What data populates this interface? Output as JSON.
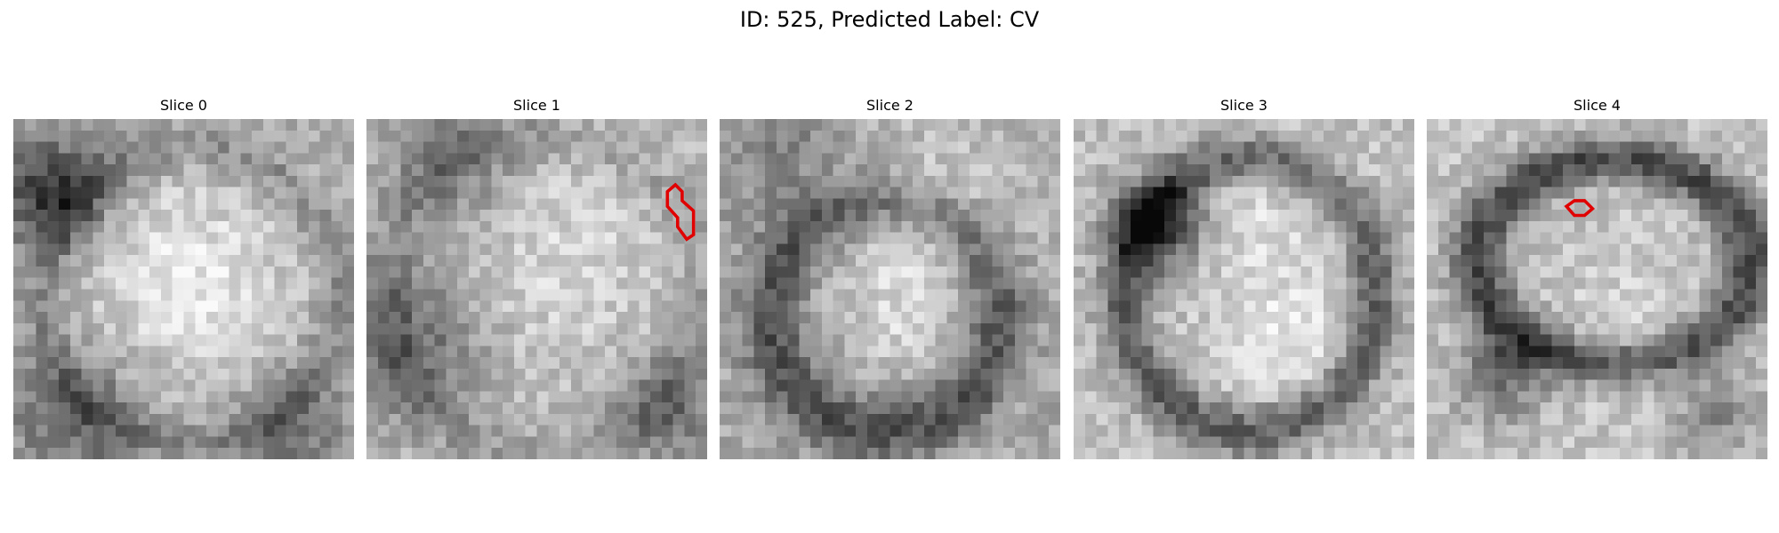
{
  "figure": {
    "title": "ID: 525, Predicted Label: CV"
  },
  "panels": [
    {
      "title": "Slice 0",
      "image": "grayscale-mri-slice-0",
      "contour": null
    },
    {
      "title": "Slice 1",
      "image": "grayscale-mri-slice-1",
      "contour": "red-contour",
      "contour_color": "#e00000"
    },
    {
      "title": "Slice 2",
      "image": "grayscale-mri-slice-2",
      "contour": null
    },
    {
      "title": "Slice 3",
      "image": "grayscale-mri-slice-3",
      "contour": null
    },
    {
      "title": "Slice 4",
      "image": "grayscale-mri-slice-4",
      "contour": "red-contour",
      "contour_color": "#e00000"
    }
  ]
}
